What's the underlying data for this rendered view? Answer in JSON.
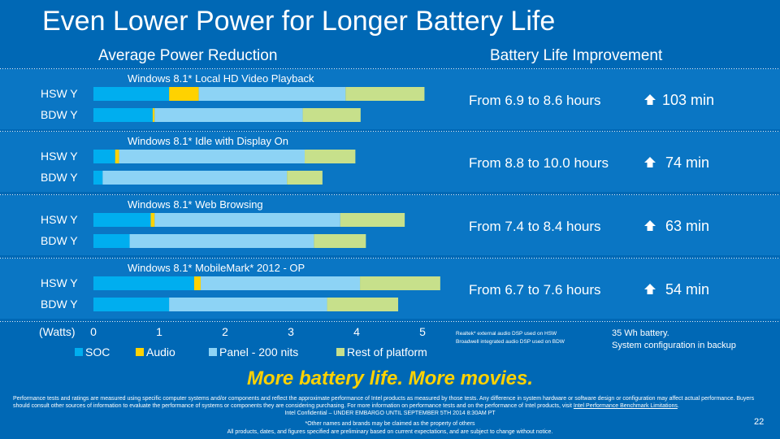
{
  "title": "Even Lower Power for Longer Battery Life",
  "left_header": "Average Power Reduction",
  "right_header": "Battery Life Improvement",
  "axis_unit": "(Watts)",
  "colors": {
    "background": "#0068b5",
    "panel": "#0a76c4",
    "soc": "#00aeef",
    "audio": "#ffd200",
    "panel_nits": "#8dd3f5",
    "rest": "#c7e08b",
    "tagline": "#ffd200"
  },
  "chart_data": {
    "type": "bar",
    "orientation": "horizontal",
    "stacked": true,
    "xlabel": "(Watts)",
    "xlim": [
      0,
      5
    ],
    "xticks": [
      0,
      1,
      2,
      3,
      4,
      5
    ],
    "legend": [
      "SOC",
      "Audio",
      "Panel - 200 nits",
      "Rest of platform"
    ],
    "legend_position": "bottom",
    "groups": [
      {
        "title": "Windows 8.1* Local HD Video Playback",
        "rows": [
          {
            "label": "HSW Y",
            "values": [
              1.15,
              0.45,
              2.23,
              1.2
            ]
          },
          {
            "label": "BDW Y",
            "values": [
              0.9,
              0.03,
              2.25,
              0.88
            ]
          }
        ],
        "improvement": "From 6.9 to 8.6 hours",
        "gain": "103 min"
      },
      {
        "title": "Windows 8.1* Idle with Display On",
        "rows": [
          {
            "label": "HSW Y",
            "values": [
              0.33,
              0.06,
              2.82,
              0.77
            ]
          },
          {
            "label": "BDW Y",
            "values": [
              0.14,
              0.0,
              2.8,
              0.54
            ]
          }
        ],
        "improvement": "From 8.8 to 10.0 hours",
        "gain": "74 min"
      },
      {
        "title": "Windows 8.1* Web Browsing",
        "rows": [
          {
            "label": "HSW Y",
            "values": [
              0.87,
              0.06,
              2.82,
              0.98
            ]
          },
          {
            "label": "BDW Y",
            "values": [
              0.55,
              0.0,
              2.8,
              0.79
            ]
          }
        ],
        "improvement": "From 7.4 to 8.4 hours",
        "gain": "63 min"
      },
      {
        "title": "Windows 8.1* MobileMark* 2012 - OP",
        "rows": [
          {
            "label": "HSW Y",
            "values": [
              1.53,
              0.1,
              2.42,
              1.22
            ]
          },
          {
            "label": "BDW Y",
            "values": [
              1.15,
              0.0,
              2.4,
              1.08
            ]
          }
        ],
        "improvement": "From 6.7 to 7.6 hours",
        "gain": "54 min"
      }
    ]
  },
  "footnotes": {
    "audio_note_1": "Realtek* external audio DSP used on HSW",
    "audio_note_2": "Broadwell integrated audio DSP used on BDW",
    "battery_1": "35 Wh battery.",
    "battery_2": "System configuration in backup"
  },
  "tagline": "More battery life.  More movies.",
  "disclaimer_text": "Performance tests and ratings are measured using specific computer systems and/or components and reflect the approximate performance of Intel products as measured by those tests. Any difference in system hardware or software design or configuration may affect actual performance. Buyers should consult other sources of information to evaluate the performance of systems or components they are considering purchasing. For more information on performance tests and on the performance of Intel products, visit",
  "disclaimer_link": "Intel Performance Benchmark Limitations",
  "confidential": "Intel Confidential – UNDER EMBARGO UNTIL  SEPTEMBER 5TH 2014 8:30AM PT",
  "trademark": "*Other names and brands may be claimed as the property of others",
  "preliminary": "All products, dates, and figures specified are preliminary based on current expectations, and are subject to change without notice.",
  "page_number": "22"
}
